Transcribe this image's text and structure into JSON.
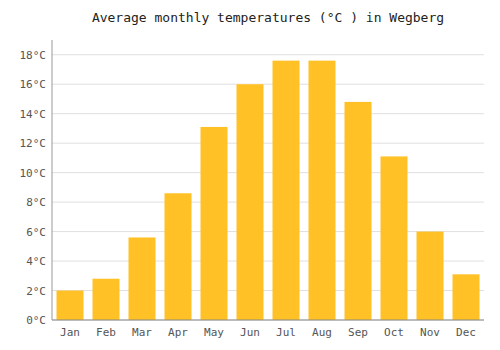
{
  "chart_data": {
    "type": "bar",
    "title": "Average monthly temperatures (°C ) in Wegberg",
    "categories": [
      "Jan",
      "Feb",
      "Mar",
      "Apr",
      "May",
      "Jun",
      "Jul",
      "Aug",
      "Sep",
      "Oct",
      "Nov",
      "Dec"
    ],
    "values": [
      2.0,
      2.8,
      5.6,
      8.6,
      13.1,
      16.0,
      17.6,
      17.6,
      14.8,
      11.1,
      6.0,
      3.1
    ],
    "color": "#FFC125",
    "ylim": [
      0,
      19.0
    ],
    "yticks": [
      {
        "value": 0,
        "label": "0°C"
      },
      {
        "value": 2,
        "label": "2°C"
      },
      {
        "value": 4,
        "label": "4°C"
      },
      {
        "value": 6,
        "label": "6°C"
      },
      {
        "value": 8,
        "label": "8°C"
      },
      {
        "value": 10,
        "label": "10°C"
      },
      {
        "value": 12,
        "label": "12°C"
      },
      {
        "value": 14,
        "label": "14°C"
      },
      {
        "value": 16,
        "label": "16°C"
      },
      {
        "value": 18,
        "label": "18°C"
      }
    ],
    "grid": true
  }
}
